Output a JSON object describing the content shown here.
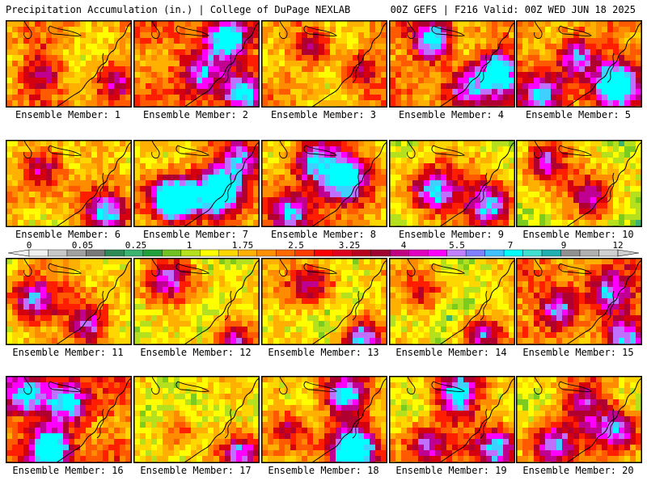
{
  "header": {
    "left": "Precipitation Accumulation (in.) | College of DuPage NEXLAB",
    "right": "00Z GEFS | F216 Valid: 00Z WED JUN 18 2025"
  },
  "members": [
    {
      "label": "Ensemble Member: 1"
    },
    {
      "label": "Ensemble Member: 2"
    },
    {
      "label": "Ensemble Member: 3"
    },
    {
      "label": "Ensemble Member: 4"
    },
    {
      "label": "Ensemble Member: 5"
    },
    {
      "label": "Ensemble Member: 6"
    },
    {
      "label": "Ensemble Member: 7"
    },
    {
      "label": "Ensemble Member: 8"
    },
    {
      "label": "Ensemble Member: 9"
    },
    {
      "label": "Ensemble Member: 10"
    },
    {
      "label": "Ensemble Member: 11"
    },
    {
      "label": "Ensemble Member: 12"
    },
    {
      "label": "Ensemble Member: 13"
    },
    {
      "label": "Ensemble Member: 14"
    },
    {
      "label": "Ensemble Member: 15"
    },
    {
      "label": "Ensemble Member: 16"
    },
    {
      "label": "Ensemble Member: 17"
    },
    {
      "label": "Ensemble Member: 18"
    },
    {
      "label": "Ensemble Member: 19"
    },
    {
      "label": "Ensemble Member: 20"
    }
  ],
  "colorbar": {
    "ticks": [
      "0",
      "0.05",
      "0.25",
      "1",
      "1.75",
      "2.5",
      "3.25",
      "4",
      "5.5",
      "7",
      "9",
      "12"
    ],
    "colors": [
      "#f0f0f0",
      "#c8c8c8",
      "#a0a0a0",
      "#787878",
      "#2e8b57",
      "#3cb371",
      "#1fa03a",
      "#6fc020",
      "#b4e01e",
      "#ffff00",
      "#ffd700",
      "#ffb000",
      "#ff9000",
      "#ff6a00",
      "#ff3c00",
      "#ff0000",
      "#e00020",
      "#b80020",
      "#a00030",
      "#c00080",
      "#e000c0",
      "#ff00ff",
      "#c080ff",
      "#8080ff",
      "#40c0ff",
      "#00ffff",
      "#40e0d0",
      "#20b0b0",
      "#909090",
      "#b0b0b0",
      "#d0d0d0"
    ]
  }
}
